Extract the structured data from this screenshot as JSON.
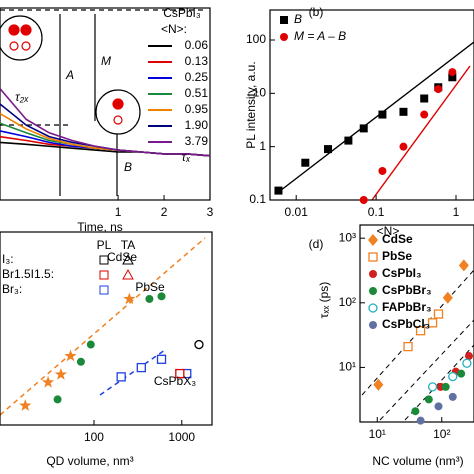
{
  "chart_data": [
    {
      "type": "line",
      "xlabel": "Time, ns",
      "xlim": [
        -1.57,
        3
      ],
      "xticks": [
        1,
        2,
        3
      ],
      "ylim": [
        0,
        1
      ],
      "legend_title": [
        "CsPbI₃",
        "<N>:"
      ],
      "annotations": [
        "M",
        "A",
        "B",
        "τ₂ₓ",
        "τₓ"
      ],
      "x": [
        -1.57,
        -1,
        -0.5,
        0,
        0.5,
        1,
        1.5,
        2,
        2.5,
        3
      ],
      "series": [
        {
          "name": "0.06",
          "color": "#000000",
          "values": [
            0.3,
            0.29,
            0.28,
            0.27,
            0.26,
            0.25,
            0.25,
            0.24,
            0.24,
            0.23
          ]
        },
        {
          "name": "0.13",
          "color": "#e00000",
          "values": [
            0.33,
            0.31,
            0.29,
            0.28,
            0.27,
            0.26,
            0.25,
            0.24,
            0.24,
            0.23
          ]
        },
        {
          "name": "0.25",
          "color": "#0000e0",
          "values": [
            0.36,
            0.33,
            0.3,
            0.28,
            0.27,
            0.26,
            0.25,
            0.24,
            0.24,
            0.23
          ]
        },
        {
          "name": "0.51",
          "color": "#1a8a3a",
          "values": [
            0.4,
            0.35,
            0.31,
            0.29,
            0.27,
            0.26,
            0.25,
            0.24,
            0.24,
            0.23
          ]
        },
        {
          "name": "0.95",
          "color": "#f08000",
          "values": [
            0.45,
            0.37,
            0.32,
            0.29,
            0.27,
            0.26,
            0.25,
            0.24,
            0.24,
            0.23
          ]
        },
        {
          "name": "1.90",
          "color": "#000080",
          "values": [
            0.5,
            0.39,
            0.33,
            0.3,
            0.28,
            0.26,
            0.25,
            0.24,
            0.24,
            0.23
          ]
        },
        {
          "name": "3.79",
          "color": "#7a1a8a",
          "values": [
            0.58,
            0.42,
            0.35,
            0.31,
            0.28,
            0.26,
            0.25,
            0.24,
            0.24,
            0.23
          ]
        }
      ]
    },
    {
      "type": "scatter",
      "panel_label": "(b)",
      "xlabel": "<N>",
      "ylabel": "PL intensity, a.u.",
      "log_x": true,
      "log_y": true,
      "xlim": [
        0.0047,
        1.68
      ],
      "ylim": [
        0.1,
        365
      ],
      "xticks": [
        0.01,
        0.1,
        1
      ],
      "yticks": [
        0.1,
        1,
        10,
        100
      ],
      "series": [
        {
          "name": "B",
          "color": "#000000",
          "marker": "square",
          "x": [
            0.006,
            0.013,
            0.025,
            0.045,
            0.07,
            0.12,
            0.22,
            0.4,
            0.6,
            0.9
          ],
          "values": [
            0.15,
            0.5,
            0.9,
            1.3,
            2.2,
            4,
            4.5,
            8,
            13,
            20
          ]
        },
        {
          "name": "M = A – B",
          "color": "#e00000",
          "marker": "circle",
          "x": [
            0.07,
            0.12,
            0.22,
            0.4,
            0.6,
            0.9
          ],
          "values": [
            0.1,
            0.35,
            1,
            4,
            12,
            25
          ]
        }
      ]
    },
    {
      "type": "scatter",
      "xlabel": "QD volume, nm³",
      "log_x": true,
      "log_y": true,
      "xlim": [
        8.5,
        2210
      ],
      "ylim": [
        1,
        1000
      ],
      "xticks": [
        100,
        1000
      ],
      "legend": {
        "columns": [
          "PL",
          "TA"
        ],
        "rows": [
          "I₃:",
          "Br1.5I1.5:",
          "Br₃:"
        ]
      },
      "series": [
        {
          "name": "CdSe",
          "color": "#f08020",
          "marker": "star",
          "x": [
            16.5,
            30,
            42,
            54,
            253
          ],
          "values": [
            2.0,
            4.6,
            6.1,
            11.8,
            91
          ]
        },
        {
          "name": "PbSe",
          "color": "#1a8a3a",
          "marker": "circle",
          "x": [
            38.5,
            71,
            92,
            428,
            588
          ],
          "values": [
            2.5,
            9.6,
            17.8,
            91,
            100
          ]
        },
        {
          "name": "CsPbX₃",
          "color": "#2040e0",
          "marker": "open-square",
          "x": [
            204,
            346,
            588,
            1140
          ],
          "values": [
            5.6,
            7.8,
            10.5,
            6.3
          ]
        },
        {
          "color": "#e00000",
          "marker": "open-square",
          "x": [
            950
          ],
          "values": [
            6.3
          ]
        },
        {
          "color": "#000000",
          "marker": "open-circle",
          "x": [
            1570
          ],
          "values": [
            17.8
          ]
        }
      ]
    },
    {
      "type": "scatter",
      "panel_label": "(d)",
      "xlabel": "NC volume (nm³)",
      "ylabel": "τₓₓ (ps)",
      "log_x": true,
      "log_y": true,
      "xlim": [
        5.4,
        316
      ],
      "ylim": [
        1.43,
        1600
      ],
      "xticks": [
        {
          "value": 10,
          "label": "10¹"
        },
        {
          "value": 100,
          "label": "10²"
        }
      ],
      "yticks": [
        {
          "value": 10,
          "label": "10¹"
        },
        {
          "value": 100,
          "label": "10²"
        },
        {
          "value": 1000,
          "label": "10³"
        }
      ],
      "series": [
        {
          "name": "CdSe",
          "color": "#f08020",
          "marker": "diamond",
          "x": [
            10.4,
            124,
            220
          ],
          "values": [
            5.4,
            120,
            380
          ]
        },
        {
          "name": "PbSe",
          "color": "#f08020",
          "marker": "open-square",
          "x": [
            30,
            47,
            72,
            89
          ],
          "values": [
            21,
            37,
            49,
            67
          ]
        },
        {
          "name": "CsPbI₃",
          "color": "#d02020",
          "marker": "circle",
          "x": [
            96,
            165,
            264
          ],
          "values": [
            5,
            8.6,
            15
          ]
        },
        {
          "name": "CsPbBr₃",
          "color": "#1a8a3a",
          "marker": "circle",
          "x": [
            39,
            63,
            115,
            200
          ],
          "values": [
            2.1,
            3.2,
            5,
            8
          ]
        },
        {
          "name": "FAPbBr₃",
          "color": "#20b0c0",
          "marker": "open-circle",
          "x": [
            72,
            148,
            245
          ],
          "values": [
            5,
            7.2,
            11.6
          ]
        },
        {
          "name": "CsPbCl₃",
          "color": "#6070a0",
          "marker": "circle",
          "x": [
            47,
            89,
            148
          ],
          "values": [
            1.5,
            2.5,
            3.5
          ]
        }
      ]
    }
  ]
}
